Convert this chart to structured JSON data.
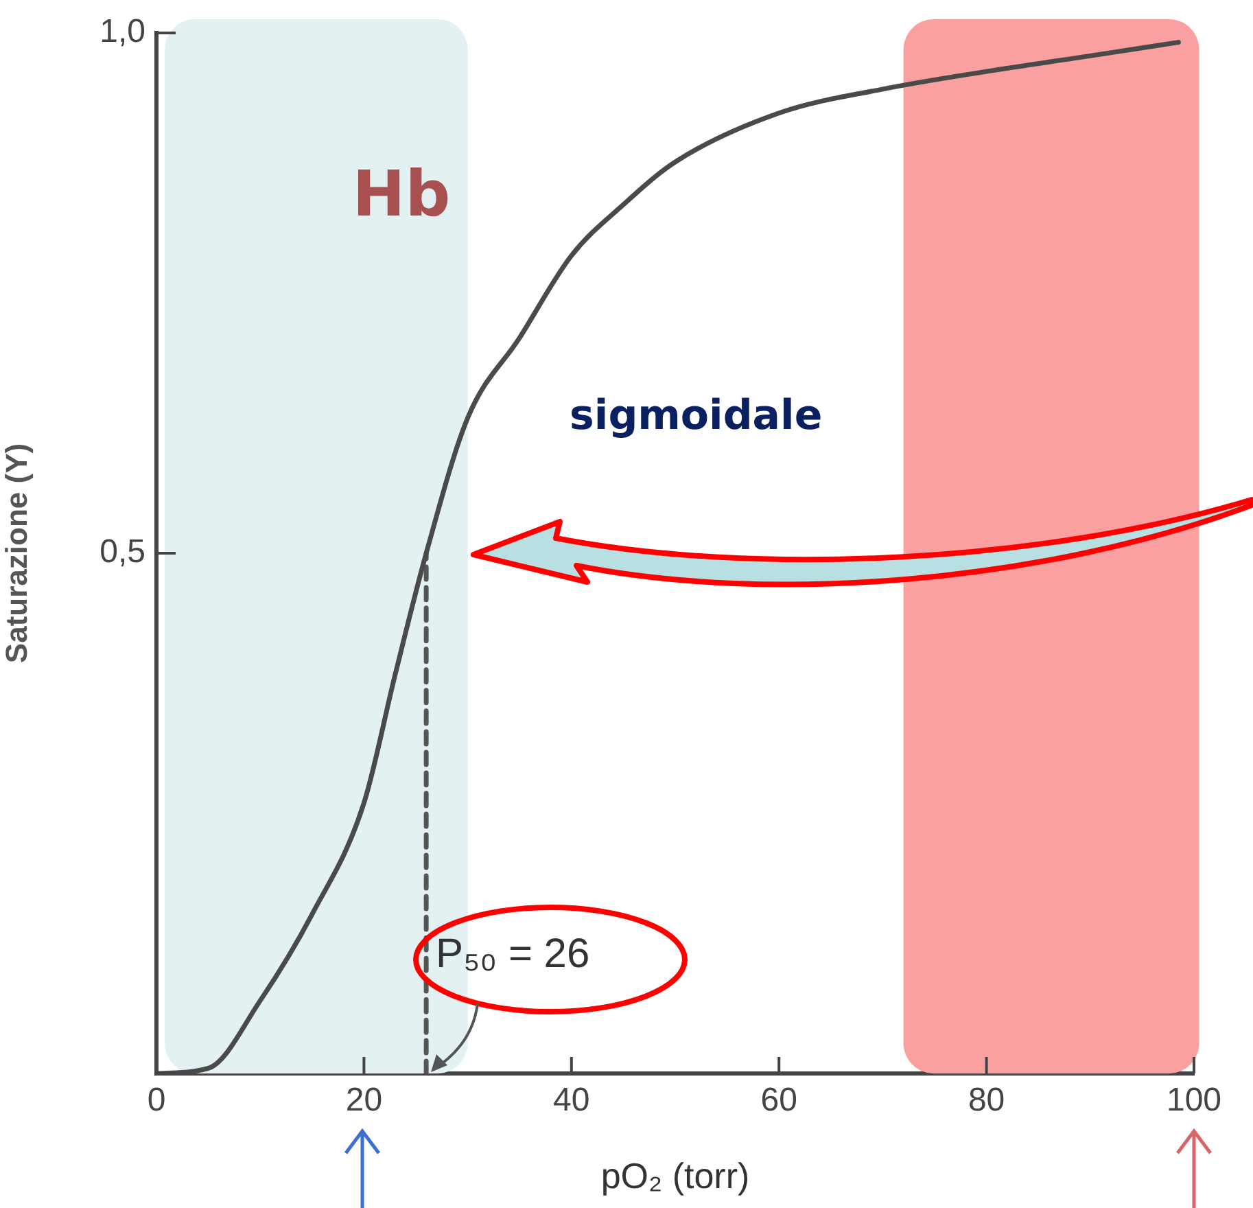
{
  "chart_data": {
    "type": "line",
    "xlabel": "pO₂ (torr)",
    "ylabel": "Saturazione (Y)",
    "xlim": [
      0,
      100
    ],
    "ylim": [
      0,
      1
    ],
    "xticks": [
      0,
      20,
      40,
      60,
      80,
      100
    ],
    "yticks": [
      {
        "value": 0,
        "label": null
      },
      {
        "value": 0.5,
        "label": "0,5"
      },
      {
        "value": 1,
        "label": "1,0"
      }
    ],
    "series": [
      {
        "color": "#4a4a4a",
        "x": [
          0,
          5,
          10,
          15,
          20,
          23,
          26,
          30,
          35,
          40,
          45,
          50,
          60,
          70,
          80,
          90,
          98.5
        ],
        "values": [
          0,
          0.005,
          0.07,
          0.153,
          0.26,
          0.383,
          0.5,
          0.63,
          0.707,
          0.786,
          0.835,
          0.876,
          0.923,
          0.946,
          0.963,
          0.978,
          0.991
        ]
      },
      {
        "color": "#555555",
        "line_style": "dashed",
        "x": [
          26,
          26
        ],
        "values": [
          0,
          0.5
        ]
      }
    ],
    "bands": [
      {
        "axis": "x",
        "from": 0.8,
        "to": 30,
        "color": "#e3f1f2"
      },
      {
        "axis": "x",
        "from": 72,
        "to": 100.5,
        "color": "#fba0a0"
      }
    ],
    "annotations": [
      "Hb",
      "sigmoidale",
      {
        "text": "P₅₀ = 26",
        "x": 26,
        "y": 0
      }
    ],
    "marker": "none",
    "grid": false,
    "legend": false
  }
}
